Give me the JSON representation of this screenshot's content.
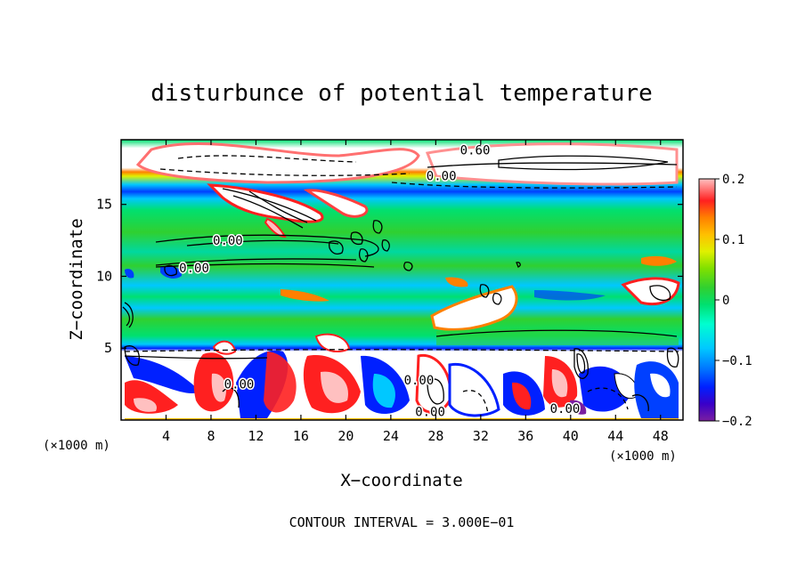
{
  "chart_data": {
    "type": "heatmap",
    "title": "disturbunce of potential temperature",
    "xlabel": "X−coordinate",
    "ylabel": "Z−coordinate",
    "x_unit_label_left": "(×1000 m)",
    "x_unit_label_right": "(×1000 m)",
    "footer": "CONTOUR INTERVAL = 3.000E−01",
    "xlim": [
      0,
      50
    ],
    "ylim": [
      0,
      19.5
    ],
    "x_ticks": [
      4,
      8,
      12,
      16,
      20,
      24,
      28,
      32,
      36,
      40,
      44,
      48
    ],
    "y_ticks": [
      5,
      10,
      15
    ],
    "colorbar": {
      "min": -0.2,
      "max": 0.2,
      "ticks": [
        "0.2",
        "0.1",
        "0",
        "−0.1",
        "−0.2"
      ],
      "colors": [
        "#7a1fa0",
        "#3a00c8",
        "#0020ff",
        "#0070ff",
        "#00c8ff",
        "#00ffd0",
        "#00e070",
        "#30d030",
        "#80e000",
        "#e0f000",
        "#ffc000",
        "#ff8000",
        "#ff2020",
        "#ff7070",
        "#ffc0c0"
      ]
    },
    "contour_labels": [
      {
        "text": "0.60",
        "x": 31.5,
        "y": 18.8
      },
      {
        "text": "0.00",
        "x": 28.5,
        "y": 17.0
      },
      {
        "text": "0.00",
        "x": 9.5,
        "y": 12.5
      },
      {
        "text": "0.00",
        "x": 6.5,
        "y": 10.6
      },
      {
        "text": "0.00",
        "x": 27.5,
        "y": 0.6
      },
      {
        "text": "0.00",
        "x": 39.5,
        "y": 0.8
      },
      {
        "text": "0.00",
        "x": 10.5,
        "y": 2.5
      },
      {
        "text": "0.00",
        "x": 26.5,
        "y": 2.8
      }
    ],
    "regions": [
      {
        "z": [
          0,
          5
        ],
        "value": "mixed −0.2 to 0.2"
      },
      {
        "z": [
          5,
          5.5
        ],
        "value": -0.1
      },
      {
        "z": [
          5.5,
          15.5
        ],
        "value": 0.0
      },
      {
        "z": [
          15.5,
          16.5
        ],
        "value": -0.1
      },
      {
        "z": [
          17,
          19.5
        ],
        "value": 0.2
      }
    ]
  }
}
